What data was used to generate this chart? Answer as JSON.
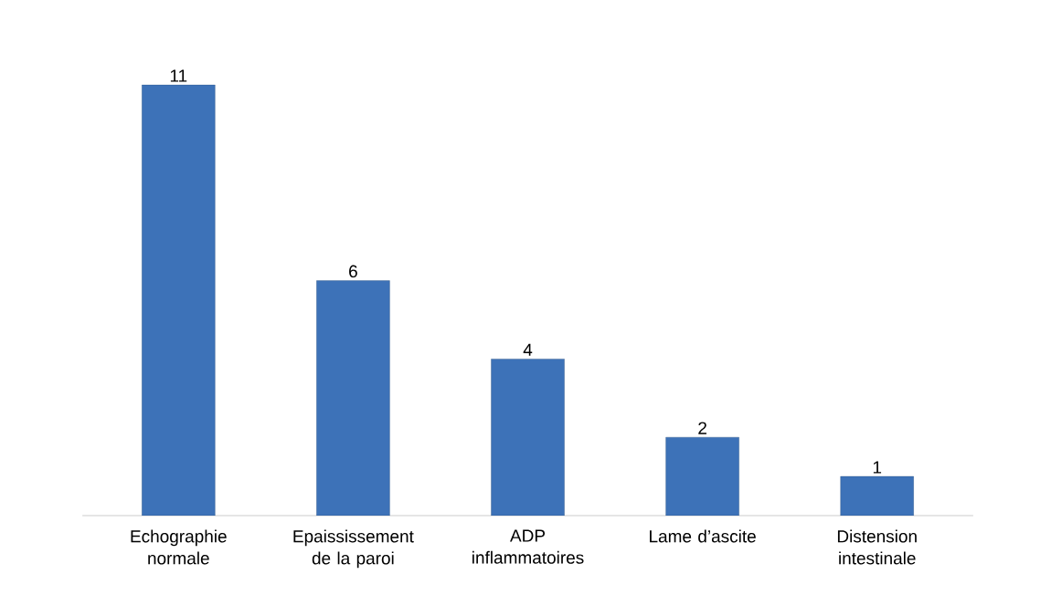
{
  "chart_data": {
    "type": "bar",
    "categories": [
      "Echographie normale",
      "Epaississement de la paroi",
      "ADP inflammatoires",
      "Lame d’ascite",
      "Distension intestinale"
    ],
    "values": [
      11,
      6,
      4,
      2,
      1
    ],
    "color": "#3d72b8",
    "data_labels": true
  }
}
